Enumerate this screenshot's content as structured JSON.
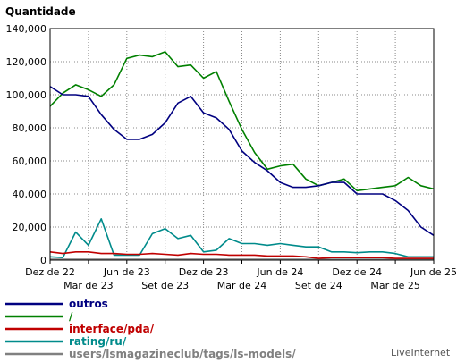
{
  "chart_data": {
    "type": "line",
    "title": "Quantidade",
    "brand": "LiveInternet",
    "ylim": [
      0,
      140000
    ],
    "yticks": [
      "0",
      "20,000",
      "40,000",
      "60,000",
      "80,000",
      "100,000",
      "120,000",
      "140,000"
    ],
    "x_top_labels": [
      "Dez de 22",
      "Jun de 23",
      "Dez de 23",
      "Jun de 24",
      "Dez de 24",
      "Jun de 25"
    ],
    "x_bottom_labels": [
      "Mar de 23",
      "Set de 23",
      "Mar de 24",
      "Set de 24",
      "Mar de 25"
    ],
    "grid": true,
    "series": [
      {
        "name": "outros",
        "color": "#000080",
        "values": [
          105000,
          100000,
          100000,
          99000,
          88000,
          79000,
          73000,
          73000,
          76000,
          83000,
          95000,
          99000,
          89000,
          86000,
          79000,
          66000,
          59000,
          54000,
          47000,
          44000,
          44000,
          45000,
          47000,
          47000,
          40000,
          40000,
          40000,
          36000,
          30000,
          20000,
          15000
        ]
      },
      {
        "name": "/",
        "color": "#008000",
        "values": [
          93000,
          101000,
          106000,
          103000,
          99000,
          106000,
          122000,
          124000,
          123000,
          126000,
          117000,
          118000,
          110000,
          114000,
          96000,
          79000,
          65000,
          55000,
          57000,
          58000,
          49000,
          45000,
          47000,
          49000,
          42000,
          43000,
          44000,
          45000,
          50000,
          45000,
          43000
        ]
      },
      {
        "name": "interface/pda/",
        "color": "#c00000",
        "values": [
          5000,
          4000,
          5000,
          5000,
          4000,
          4000,
          3500,
          3500,
          4000,
          3500,
          3000,
          4000,
          3500,
          3500,
          3000,
          3000,
          3000,
          2500,
          2500,
          2500,
          2000,
          1000,
          1500,
          1500,
          1500,
          1500,
          1500,
          1000,
          1000,
          1000,
          1000
        ]
      },
      {
        "name": "rating/ru/",
        "color": "#008b8b",
        "values": [
          2000,
          1500,
          17000,
          9000,
          25000,
          3000,
          3000,
          3000,
          16000,
          19000,
          13000,
          15000,
          5000,
          6000,
          13000,
          10000,
          10000,
          9000,
          10000,
          9000,
          8000,
          8000,
          5000,
          5000,
          4500,
          5000,
          5000,
          4000,
          2000,
          2000,
          2000
        ]
      },
      {
        "name": "users/lsmagazineclub/tags/ls-models/",
        "color": "#808080",
        "values": [
          500,
          500,
          500,
          500,
          500,
          500,
          500,
          500,
          500,
          500,
          500,
          500,
          500,
          500,
          500,
          500,
          500,
          500,
          500,
          500,
          500,
          500,
          500,
          500,
          500,
          500,
          500,
          500,
          500,
          500,
          500
        ]
      }
    ]
  }
}
